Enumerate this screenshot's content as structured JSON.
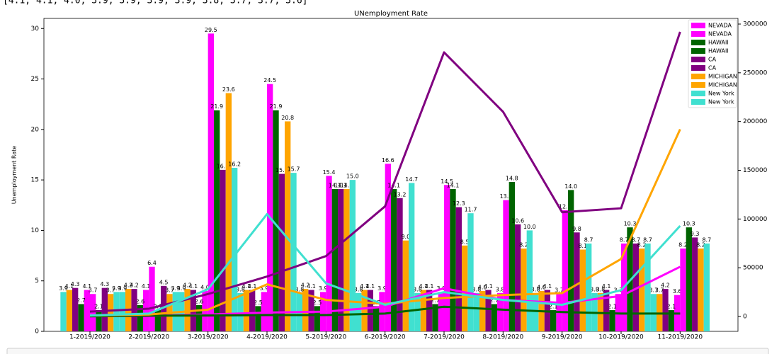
{
  "output_text": "[4.1, 4.1, 4.0, 3.9, 3.9, 3.9, 3.9, 3.8, 3.7, 3.7, 3.6]",
  "chart_data": {
    "type": "bar",
    "title": "UNemployment Rate",
    "ylabel": "Unemployment Rate",
    "categories": [
      "1-2019/2020",
      "2-2019/2020",
      "3-2019/2020",
      "4-2019/2020",
      "5-2019/2020",
      "6-2019/2020",
      "7-2019/2020",
      "8-2019/2020",
      "9-2019/2020",
      "10-2019/2020",
      "11-2019/2020"
    ],
    "ylim": [
      0,
      31
    ],
    "yticks": [
      0,
      5,
      10,
      15,
      20,
      25,
      30
    ],
    "y2lim": [
      -15250,
      305800
    ],
    "y2ticks": [
      0,
      50000,
      100000,
      150000,
      200000,
      250000,
      300000
    ],
    "legend": "upper right",
    "series": [
      {
        "name": "NEVADA",
        "color": "#ff00ff",
        "values": [
          4.1,
          4.1,
          4.0,
          3.9,
          3.9,
          3.9,
          3.9,
          3.8,
          3.7,
          3.7,
          3.6
        ],
        "value_labels": [
          "4.1",
          "4.1",
          "4.0",
          "3.9",
          "3.9",
          "3.9",
          "3.9",
          "3.8",
          "3.7",
          "3.7",
          "3.6"
        ]
      },
      {
        "name": "NEVADA",
        "color": "#ff00ff",
        "values": [
          3.7,
          6.4,
          29.5,
          24.5,
          15.4,
          16.6,
          14.5,
          13.0,
          12.0,
          8.7,
          8.2
        ],
        "value_labels": [
          "3.7",
          "6.4",
          "29.5",
          "24.5",
          "15.4",
          "16.6",
          "14.5",
          "13.0",
          "12.0",
          "8.7",
          "8.2"
        ]
      },
      {
        "name": "HAWAII",
        "color": "#006400",
        "values": [
          2.7,
          2.6,
          2.6,
          2.5,
          2.5,
          2.5,
          2.7,
          2.7,
          2.1,
          2.1,
          2.1
        ],
        "value_labels": [
          "2.7",
          "2.6",
          "2.6",
          "2.5",
          "2.5",
          "2.5",
          "2.7",
          "2.7",
          "2.1",
          "2.1",
          "2.1"
        ]
      },
      {
        "name": "HAWAII",
        "color": "#006400",
        "values": [
          2.1,
          2.1,
          21.9,
          21.9,
          14.1,
          14.1,
          14.1,
          14.8,
          14.0,
          10.3,
          10.3
        ],
        "value_labels": [
          "2.1",
          "2.1",
          "21.9",
          "21.9",
          "14.1",
          "14.1",
          "14.1",
          "14.8",
          "14.0",
          "10.3",
          "10.3"
        ]
      },
      {
        "name": "CA",
        "color": "#800080",
        "values": [
          4.3,
          4.2,
          4.1,
          4.1,
          4.1,
          4.1,
          4.1,
          4.1,
          4.1,
          4.1,
          4.2
        ],
        "value_labels": [
          "4.3",
          "4.2",
          "4.1",
          "4.1",
          "4.1",
          "4.1",
          "4.1",
          "4.1",
          "4.1",
          "4.1",
          "4.2"
        ]
      },
      {
        "name": "CA",
        "color": "#800080",
        "values": [
          4.3,
          4.5,
          16.0,
          15.6,
          14.1,
          13.2,
          12.3,
          10.6,
          9.8,
          8.7,
          9.3
        ],
        "value_labels": [
          "4.3",
          "4.5",
          "16.0",
          "15.6",
          "14.1",
          "13.2",
          "12.3",
          "10.6",
          "9.8",
          "8.7",
          "9.3"
        ]
      },
      {
        "name": "MICHIGAN",
        "color": "#ffa500",
        "values": [
          4.1,
          4.2,
          4.2,
          4.1,
          4.2,
          4.1,
          4.1,
          4.0,
          4.0,
          3.8,
          3.7
        ],
        "value_labels": [
          "4.1",
          "4.2",
          "4.2",
          "4.1",
          "4.2",
          "4.1",
          "4.1",
          "4.0",
          "4.0",
          "3.8",
          "3.7"
        ]
      },
      {
        "name": "MICHIGAN",
        "color": "#ffa500",
        "values": [
          3.7,
          3.7,
          23.6,
          20.8,
          14.1,
          9.0,
          8.5,
          8.2,
          8.1,
          8.2,
          8.2
        ],
        "value_labels": [
          "3.7",
          "3.7",
          "23.6",
          "20.8",
          "14.1",
          "9.0",
          "8.5",
          "8.2",
          "8.1",
          "8.2",
          "8.2"
        ]
      },
      {
        "name": "New York",
        "color": "#40e0d0",
        "values": [
          3.9,
          3.9,
          3.9,
          3.8,
          3.8,
          3.8,
          3.8,
          3.8,
          3.8,
          3.8,
          3.7
        ],
        "value_labels": [
          "3.9",
          "3.9",
          "3.9",
          "3.8",
          "3.8",
          "3.8",
          "3.8",
          "3.8",
          "3.8",
          "3.8",
          "3.7"
        ]
      },
      {
        "name": "New York",
        "color": "#40e0d0",
        "values": [
          3.9,
          3.9,
          16.2,
          15.7,
          15.0,
          14.7,
          11.7,
          10.0,
          8.7,
          8.7,
          8.7
        ],
        "value_labels": [
          "3.9",
          "3.9",
          "16.2",
          "15.7",
          "15.0",
          "14.7",
          "11.7",
          "10.0",
          "8.7",
          "8.7",
          "8.7"
        ]
      },
      {
        "type": "line",
        "axis": "y2",
        "color": "#ff00ff",
        "values": [
          500,
          600,
          2000,
          4000,
          5000,
          10000,
          29000,
          17000,
          14000,
          21000,
          51000
        ]
      },
      {
        "type": "line",
        "axis": "y2",
        "color": "#006400",
        "values": [
          200,
          800,
          1000,
          1500,
          1500,
          3000,
          10000,
          7000,
          4500,
          3000,
          3000
        ]
      },
      {
        "type": "line",
        "axis": "y2",
        "color": "#800080",
        "values": [
          5000,
          8000,
          23000,
          41000,
          62000,
          113000,
          271000,
          210000,
          107000,
          111000,
          292000
        ]
      },
      {
        "type": "line",
        "axis": "y2",
        "color": "#ffa500",
        "values": [
          1000,
          2000,
          7000,
          33000,
          17000,
          13000,
          19000,
          22000,
          24000,
          59000,
          192000
        ]
      },
      {
        "type": "line",
        "axis": "y2",
        "color": "#40e0d0",
        "values": [
          1000,
          3000,
          28000,
          105000,
          34000,
          12000,
          25000,
          17000,
          12000,
          27000,
          93000
        ]
      }
    ]
  }
}
